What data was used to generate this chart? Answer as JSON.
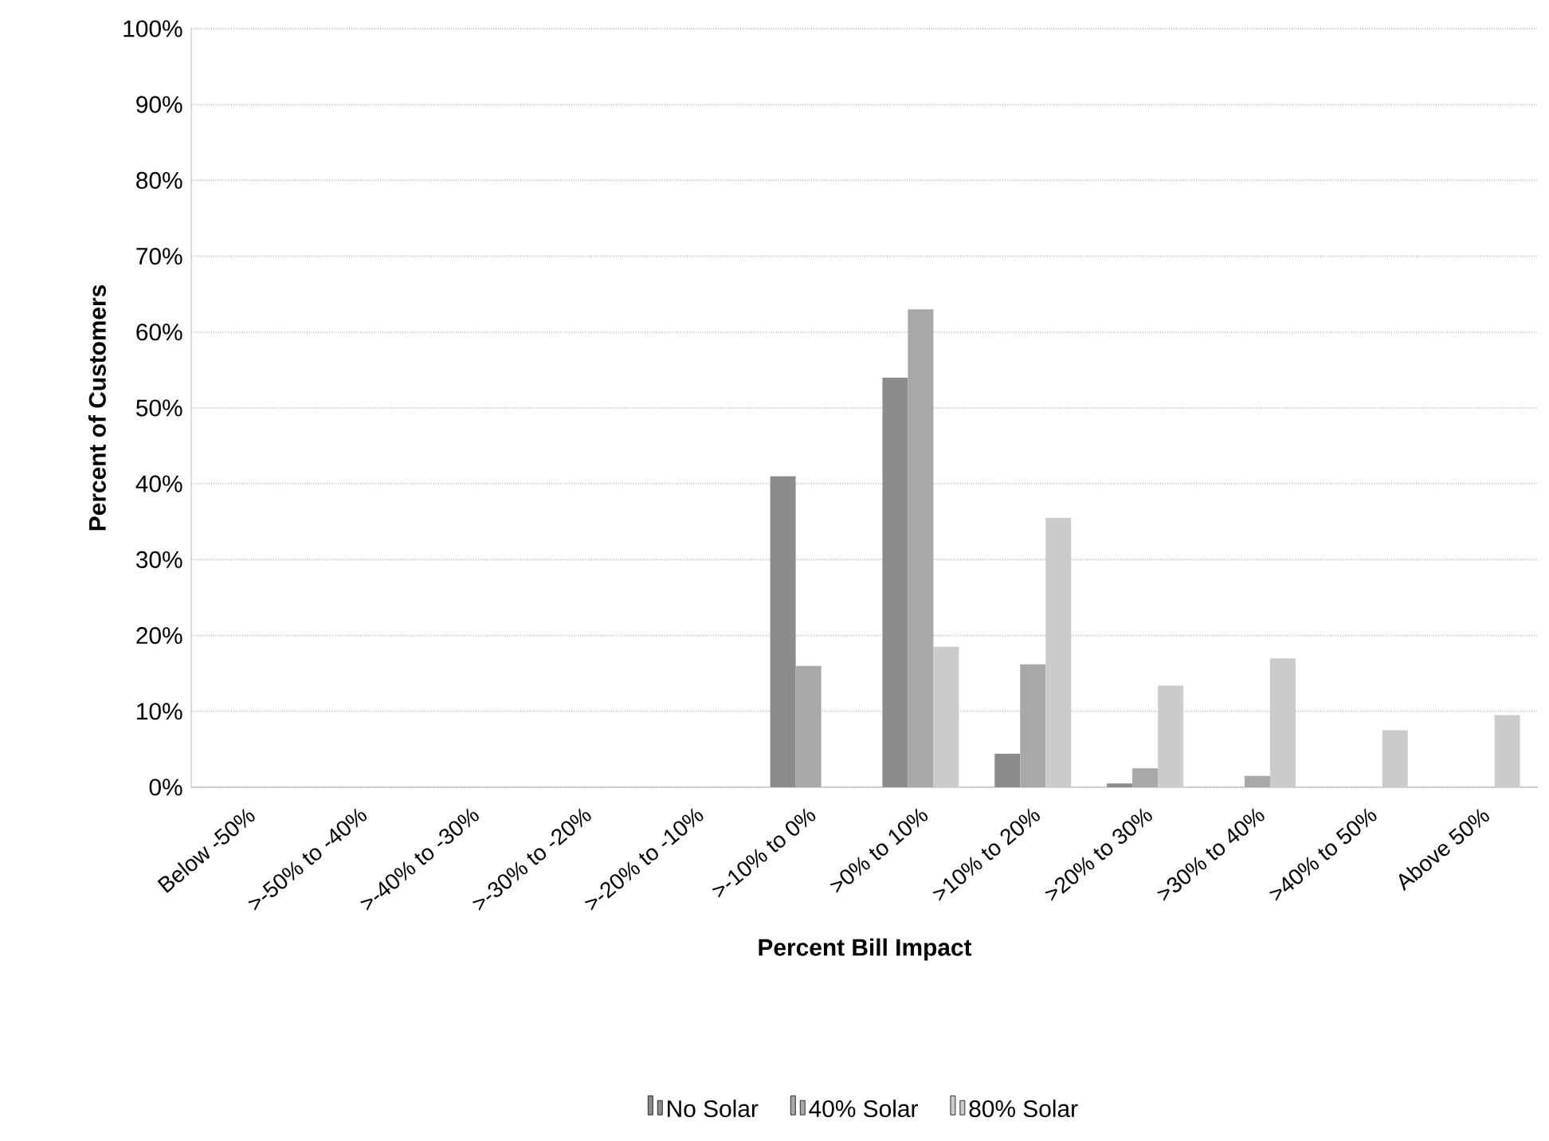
{
  "chart_data": {
    "type": "bar",
    "xlabel": "Percent Bill Impact",
    "ylabel": "Percent of Customers",
    "categories": [
      "Below -50%",
      ">-50% to -40%",
      ">-40% to -30%",
      ">-30% to -20%",
      ">-20% to -10%",
      ">-10% to 0%",
      ">0% to 10%",
      ">10% to 20%",
      ">20% to 30%",
      ">30% to 40%",
      ">40% to 50%",
      "Above 50%"
    ],
    "series": [
      {
        "name": "No Solar",
        "color": "#8c8c8c",
        "values": [
          0,
          0,
          0,
          0,
          0,
          41,
          54,
          4.4,
          0.5,
          0,
          0,
          0
        ]
      },
      {
        "name": "40% Solar",
        "color": "#a8a8a8",
        "values": [
          0,
          0,
          0,
          0,
          0,
          16,
          63,
          16.2,
          2.5,
          1.5,
          0,
          0
        ]
      },
      {
        "name": "80% Solar",
        "color": "#cbcbcb",
        "values": [
          0,
          0,
          0,
          0,
          0,
          0,
          18.5,
          35.5,
          13.4,
          17,
          7.5,
          9.5
        ]
      }
    ],
    "ylim": [
      0,
      100
    ],
    "yticks": [
      {
        "value": 0,
        "label": "0%"
      },
      {
        "value": 10,
        "label": "10%"
      },
      {
        "value": 20,
        "label": "20%"
      },
      {
        "value": 30,
        "label": "30%"
      },
      {
        "value": 40,
        "label": "40%"
      },
      {
        "value": 50,
        "label": "50%"
      },
      {
        "value": 60,
        "label": "60%"
      },
      {
        "value": 70,
        "label": "70%"
      },
      {
        "value": 80,
        "label": "80%"
      },
      {
        "value": 90,
        "label": "90%"
      },
      {
        "value": 100,
        "label": "100%"
      }
    ],
    "grid": "y",
    "legend": "bottom"
  }
}
